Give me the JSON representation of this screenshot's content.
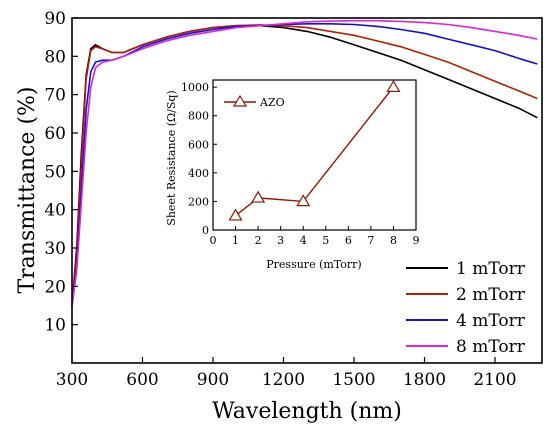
{
  "chart_data": [
    {
      "type": "line",
      "xlabel": "Wavelength (nm)",
      "ylabel": "Transmittance (%)",
      "xlim": [
        300,
        2300
      ],
      "ylim": [
        0,
        90
      ],
      "xticks": [
        300,
        600,
        900,
        1200,
        1500,
        1800,
        2100
      ],
      "yticks": [
        10,
        20,
        30,
        40,
        50,
        60,
        70,
        80,
        90
      ],
      "legend_position": "bottom-right",
      "series": [
        {
          "name": "1 mTorr",
          "color": "#000000",
          "x": [
            300,
            320,
            340,
            360,
            380,
            400,
            430,
            470,
            520,
            600,
            700,
            800,
            900,
            1000,
            1100,
            1200,
            1300,
            1400,
            1500,
            1600,
            1700,
            1800,
            1900,
            2000,
            2100,
            2200,
            2280
          ],
          "y": [
            15,
            30,
            55,
            75,
            82,
            83,
            82,
            81,
            81,
            83,
            85,
            86.5,
            87.5,
            88,
            88,
            87.5,
            86.5,
            85,
            83,
            81,
            79,
            76.5,
            74,
            71.5,
            69,
            66.5,
            64
          ]
        },
        {
          "name": "2 mTorr",
          "color": "#b22000",
          "x": [
            300,
            320,
            340,
            360,
            380,
            400,
            430,
            470,
            520,
            600,
            700,
            800,
            900,
            1000,
            1100,
            1200,
            1300,
            1400,
            1500,
            1600,
            1700,
            1800,
            1900,
            2000,
            2100,
            2200,
            2280
          ],
          "y": [
            15,
            28,
            52,
            74,
            81.5,
            82.5,
            82,
            81,
            81,
            83,
            85,
            86.5,
            87.5,
            88,
            88.2,
            88,
            87.5,
            86.5,
            85.5,
            84,
            82.5,
            80.5,
            78.5,
            76,
            73.5,
            71,
            69
          ]
        },
        {
          "name": "4 mTorr",
          "color": "#1010d8",
          "x": [
            300,
            320,
            340,
            360,
            380,
            400,
            430,
            470,
            520,
            600,
            700,
            800,
            900,
            1000,
            1100,
            1200,
            1300,
            1400,
            1500,
            1600,
            1700,
            1800,
            1900,
            2000,
            2100,
            2200,
            2280
          ],
          "y": [
            15,
            25,
            45,
            66,
            76,
            78.5,
            79,
            79,
            80,
            82.5,
            84.5,
            86,
            87,
            87.8,
            88,
            88.3,
            88.5,
            88.5,
            88.3,
            87.8,
            87,
            86,
            84.5,
            83,
            81.5,
            79.5,
            78
          ]
        },
        {
          "name": "8 mTorr",
          "color": "#e020e0",
          "x": [
            300,
            320,
            340,
            360,
            380,
            400,
            430,
            470,
            520,
            600,
            700,
            800,
            900,
            1000,
            1100,
            1200,
            1300,
            1400,
            1500,
            1600,
            1700,
            1800,
            1900,
            2000,
            2100,
            2200,
            2280
          ],
          "y": [
            15,
            24,
            42,
            60,
            72,
            77,
            78.5,
            79,
            80,
            82,
            84,
            85.5,
            86.5,
            87.5,
            88,
            88.5,
            89,
            89.2,
            89.3,
            89.3,
            89.1,
            88.8,
            88.3,
            87.5,
            86.5,
            85.5,
            84.5
          ]
        }
      ]
    },
    {
      "type": "line",
      "xlabel": "Pressure (mTorr)",
      "ylabel": "Sheet Resistance (Ω/Sq)",
      "xlim": [
        0,
        9
      ],
      "ylim": [
        0,
        1050
      ],
      "xticks": [
        0,
        1,
        2,
        3,
        4,
        5,
        6,
        7,
        8,
        9
      ],
      "yticks": [
        0,
        200,
        400,
        600,
        800,
        1000
      ],
      "legend_position": "top-left",
      "series": [
        {
          "name": "AZO",
          "color": "#8b1a00",
          "marker": "triangle",
          "x": [
            1,
            2,
            4,
            8
          ],
          "y": [
            100,
            225,
            200,
            1000
          ]
        }
      ]
    }
  ]
}
